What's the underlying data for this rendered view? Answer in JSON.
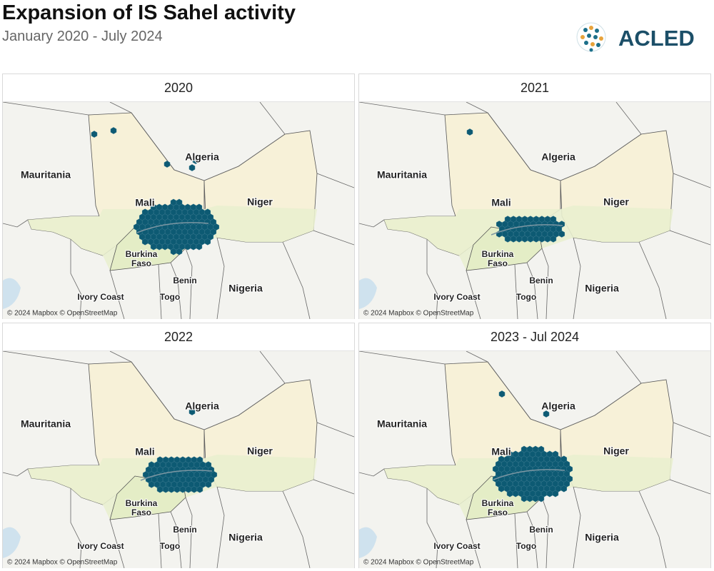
{
  "header": {
    "title": "Expansion of IS Sahel activity",
    "subtitle": "January 2020 - July 2024",
    "logo": "ACLED"
  },
  "panels": [
    {
      "title": "2020"
    },
    {
      "title": "2021"
    },
    {
      "title": "2022"
    },
    {
      "title": "2023 - Jul 2024"
    }
  ],
  "map_labels": {
    "algeria": "Algeria",
    "mauritania": "Mauritania",
    "mali": "Mali",
    "niger": "Niger",
    "burkina_faso": [
      "Burkina",
      "Faso"
    ],
    "benin": "Benin",
    "nigeria": "Nigeria",
    "ivory_coast": "Ivory Coast",
    "togo": "Togo"
  },
  "attribution": "© 2024 Mapbox © OpenStreetMap"
}
